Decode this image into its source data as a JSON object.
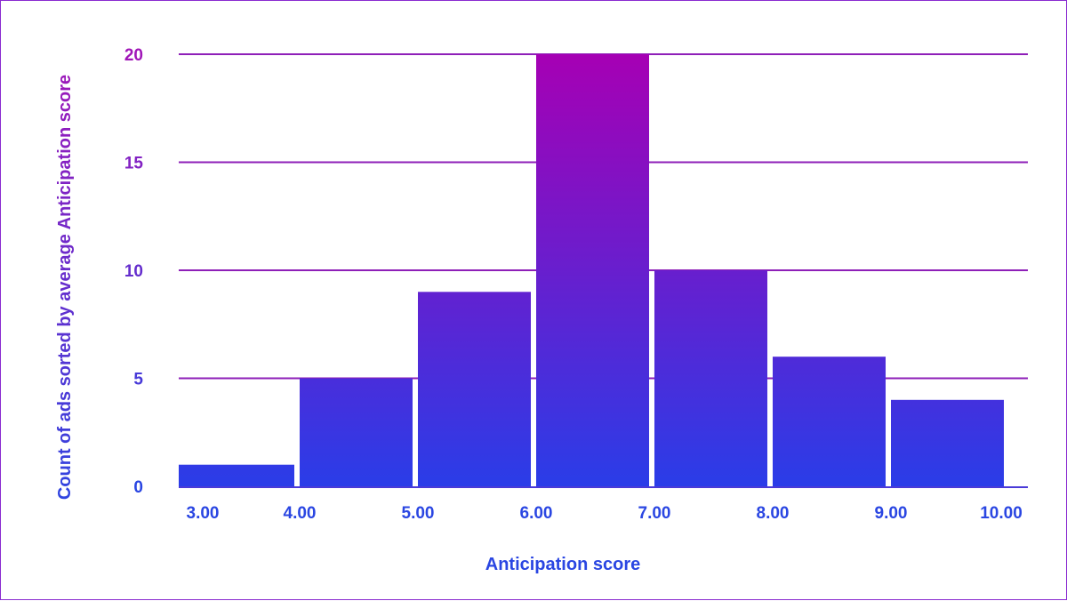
{
  "chart_data": {
    "type": "bar",
    "xlabel": "Anticipation score",
    "ylabel": "Count of ads sorted by average Anticipation score",
    "bins": [
      {
        "start": 3.0,
        "end": 4.0,
        "value": 1
      },
      {
        "start": 4.0,
        "end": 5.0,
        "value": 5
      },
      {
        "start": 5.0,
        "end": 6.0,
        "value": 9
      },
      {
        "start": 6.0,
        "end": 7.0,
        "value": 20
      },
      {
        "start": 7.0,
        "end": 8.0,
        "value": 10
      },
      {
        "start": 8.0,
        "end": 9.0,
        "value": 6
      },
      {
        "start": 9.0,
        "end": 10.0,
        "value": 4
      }
    ],
    "x_ticks": [
      "3.00",
      "4.00",
      "5.00",
      "6.00",
      "7.00",
      "8.00",
      "9.00",
      "10.00"
    ],
    "y_ticks": [
      "0",
      "5",
      "10",
      "15",
      "20"
    ],
    "ylim": [
      0,
      20
    ],
    "xlim": [
      3,
      10
    ],
    "grid": true,
    "colors": {
      "gradient_top": "#a600b4",
      "gradient_bottom": "#2a3de8",
      "gridline": "#8e1fb8",
      "axis_line": "#4a3ad8",
      "tick_top": "#a016b8",
      "tick_bottom": "#2a46e2"
    }
  }
}
